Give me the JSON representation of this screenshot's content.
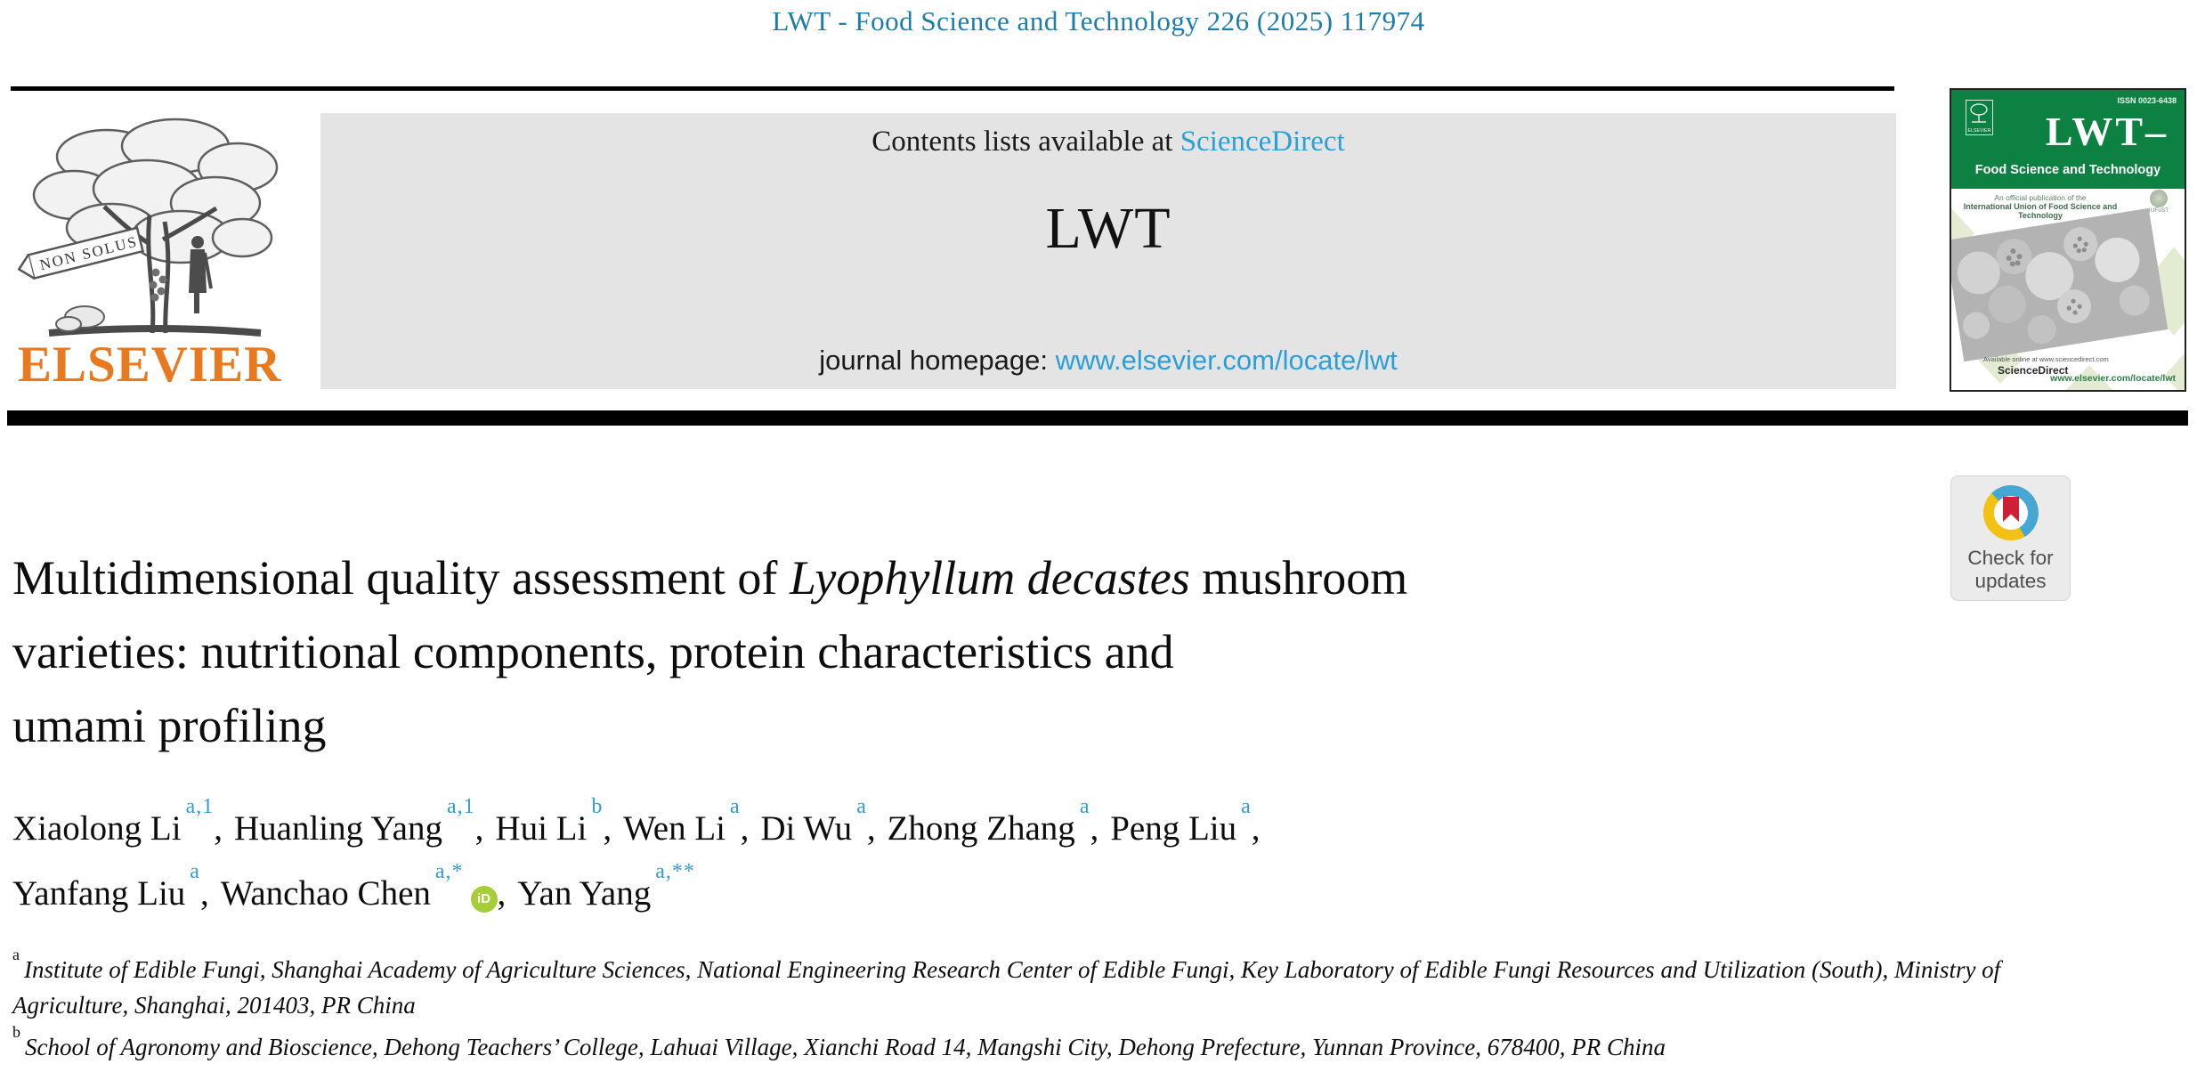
{
  "page": {
    "running_head": "LWT - Food Science and Technology 226 (2025) 117974"
  },
  "publisher": {
    "wordmark": "ELSEVIER",
    "motto": "NON SOLUS"
  },
  "banner": {
    "contents_prefix": "Contents lists available at ",
    "sciencedirect_label": "ScienceDirect",
    "journal_title": "LWT",
    "homepage_prefix": "journal homepage: ",
    "homepage_url": "www.elsevier.com/locate/lwt"
  },
  "cover": {
    "issn": "ISSN 0023-6438",
    "elsevier_label": "ELSEVIER",
    "title": "LWT–",
    "subtitle": "Food Science and Technology",
    "note_line1": "An official publication of the",
    "note_line2": "International Union of Food Science and Technology",
    "iufost_label": "IUFoST",
    "available_online": "Available online at www.sciencedirect.com",
    "sciencedirect_label": "ScienceDirect",
    "site_url": "www.elsevier.com/locate/lwt"
  },
  "badge": {
    "line1": "Check for",
    "line2": "updates"
  },
  "article": {
    "title_lines": [
      {
        "pre": "Multidimensional quality assessment of ",
        "italic": "Lyophyllum decastes",
        "post": " mushroom"
      },
      {
        "pre": "varieties: nutritional components, protein characteristics and"
      },
      {
        "pre": "umami profiling"
      }
    ],
    "orcid_label": "iD",
    "author_lines": [
      [
        {
          "name": "Xiaolong Li",
          "sup": "a,1",
          "sep": ","
        },
        {
          "name": "Huanling Yang",
          "sup": "a,1",
          "sep": ","
        },
        {
          "name": "Hui Li",
          "sup": "b",
          "sep": ","
        },
        {
          "name": "Wen Li",
          "sup": "a",
          "sep": ","
        },
        {
          "name": "Di Wu",
          "sup": "a",
          "sep": ","
        },
        {
          "name": "Zhong Zhang",
          "sup": "a",
          "sep": ","
        },
        {
          "name": "Peng Liu",
          "sup": "a",
          "sep": ","
        }
      ],
      [
        {
          "name": "Yanfang Liu",
          "sup": "a",
          "sep": ","
        },
        {
          "name": "Wanchao Chen",
          "sup": "a,*",
          "orcid": true,
          "sep": ","
        },
        {
          "name": "Yan Yang",
          "sup": "a,**"
        }
      ]
    ],
    "affiliations": [
      {
        "sup": "a",
        "text": "Institute of Edible Fungi, Shanghai Academy of Agriculture Sciences, National Engineering Research Center of Edible Fungi, Key Laboratory of Edible Fungi Resources and Utilization (South), Ministry of Agriculture, Shanghai, 201403, PR China"
      },
      {
        "sup": "b",
        "text": "School of Agronomy and Bioscience, Dehong Teachers’ College, Lahuai Village, Xianchi Road 14, Mangshi City, Dehong Prefecture, Yunnan Province, 678400, PR China"
      }
    ]
  },
  "colors": {
    "running_head_teal": "#1b7da8",
    "link_blue": "#2aa0d6",
    "superscript_blue": "#2e9ed6",
    "elsevier_orange": "#e8791f",
    "cover_green": "#0c8142",
    "orcid_green": "#a6ce39",
    "crossmark_blue": "#45a7d4",
    "crossmark_yellow": "#f2c113",
    "crossmark_red": "#cf2135",
    "banner_gray": "#e4e4e4"
  }
}
